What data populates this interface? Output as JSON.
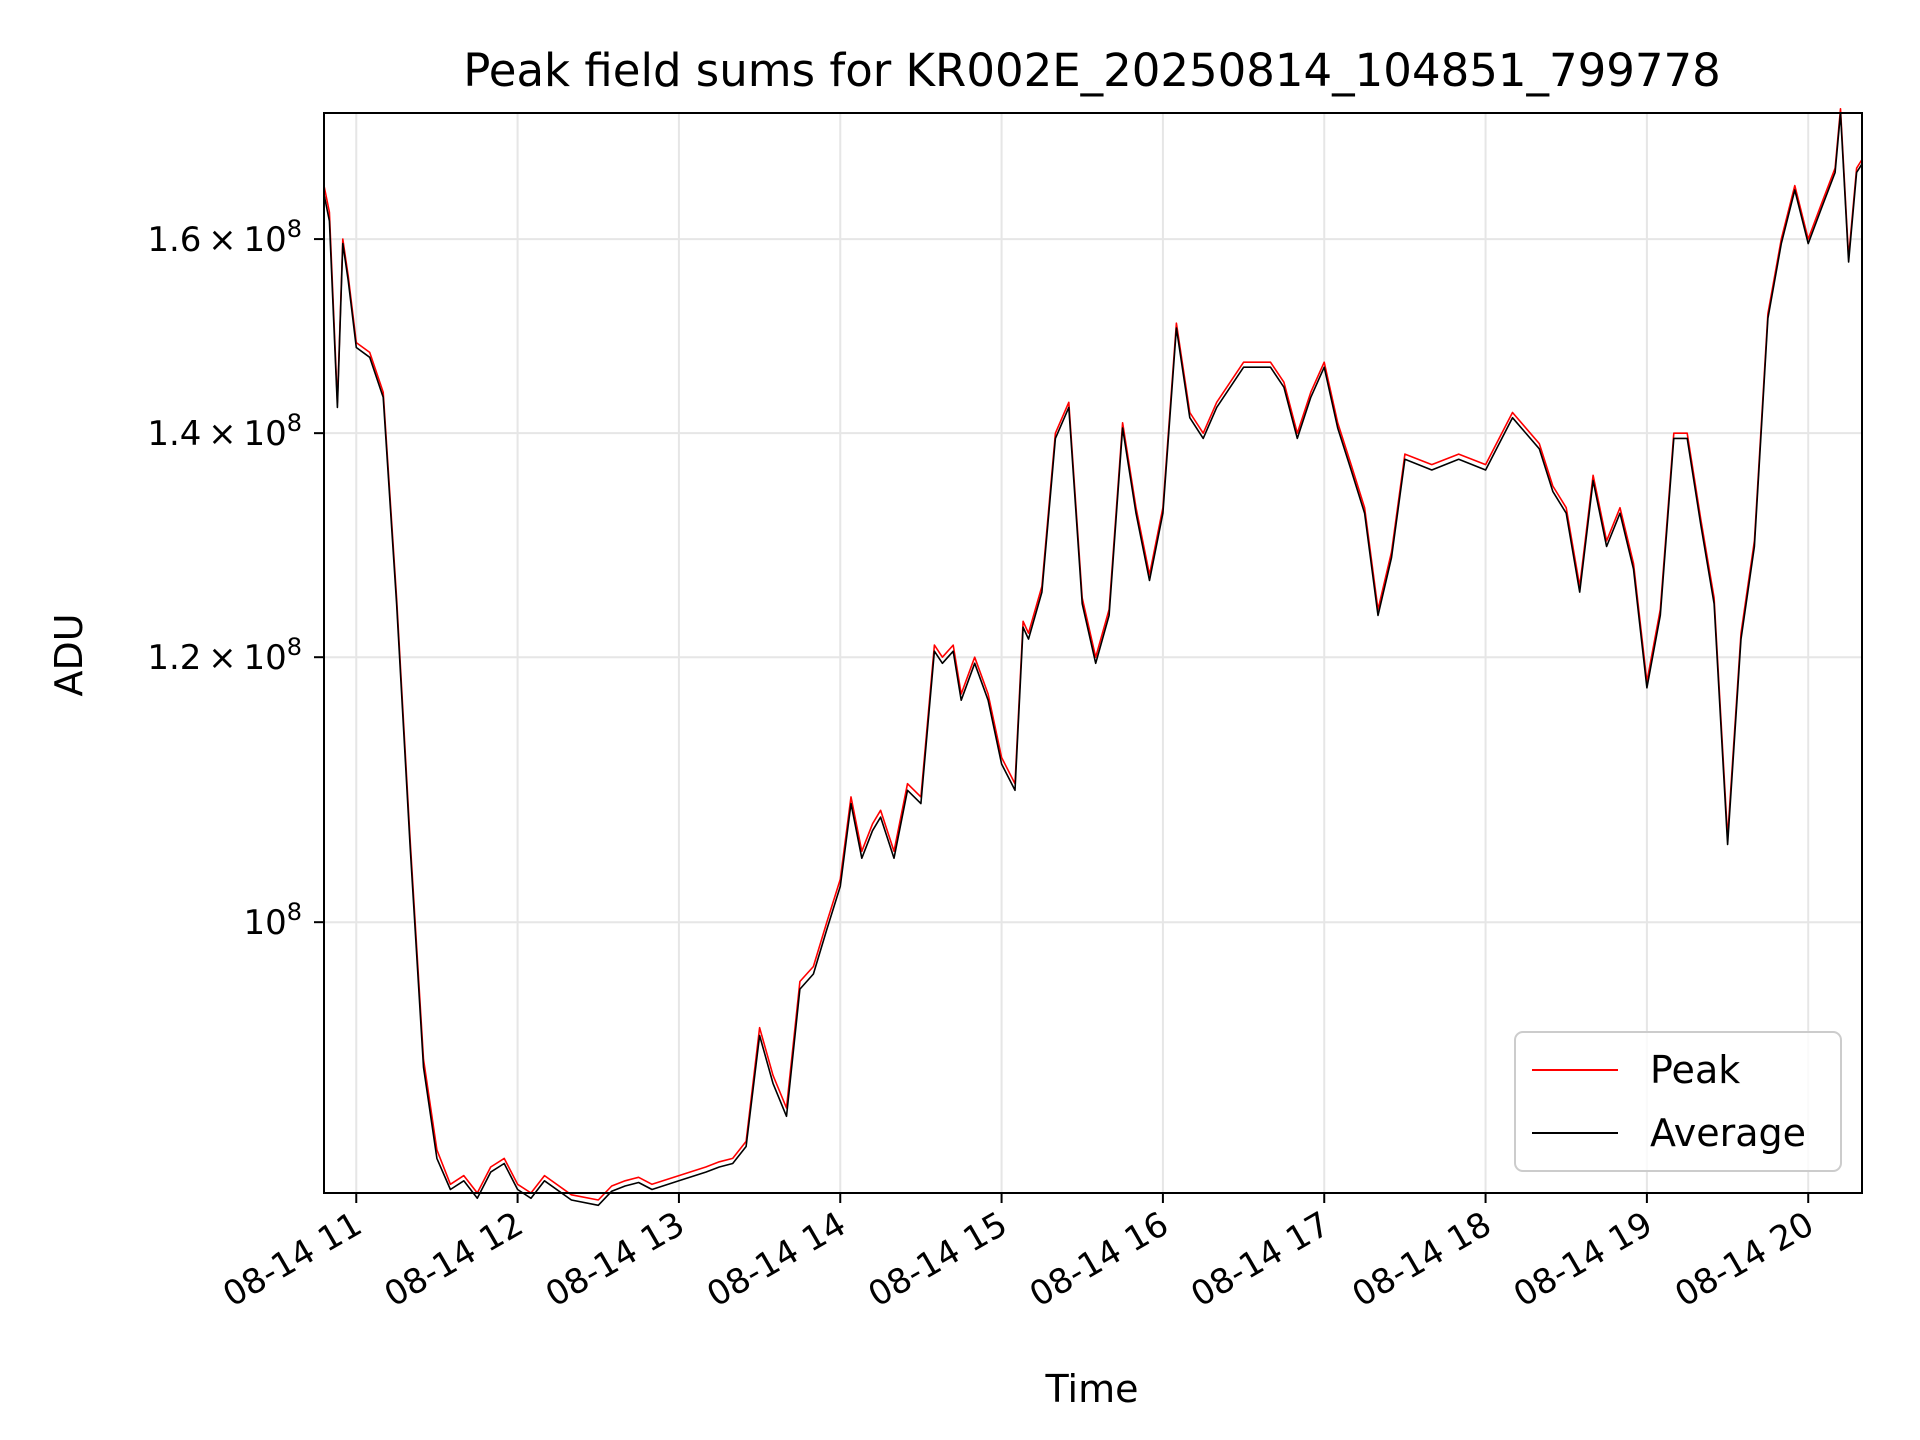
{
  "chart_data": {
    "type": "line",
    "title": "Peak field sums for KR002E_20250814_104851_799778",
    "xlabel": "Time",
    "ylabel": "ADU",
    "x_tick_labels": [
      "08-14 11",
      "08-14 12",
      "08-14 13",
      "08-14 14",
      "08-14 15",
      "08-14 16",
      "08-14 17",
      "08-14 18",
      "08-14 19",
      "08-14 20"
    ],
    "y_scale": "log",
    "y_ticks": [
      {
        "value": 100000000,
        "mantissa": "",
        "exponent": "8"
      },
      {
        "value": 120000000,
        "mantissa": "1.2",
        "exponent": "8"
      },
      {
        "value": 140000000,
        "mantissa": "1.4",
        "exponent": "8"
      },
      {
        "value": 160000000,
        "mantissa": "1.6",
        "exponent": "8"
      }
    ],
    "xlim": [
      "08-14 10:48",
      "08-14 20:20"
    ],
    "ylim": [
      83000000,
      174500000
    ],
    "grid": true,
    "legend_position": "lower right",
    "series": [
      {
        "name": "Peak",
        "color": "#ff0000",
        "linewidth_style": "thin",
        "role": "peak"
      },
      {
        "name": "Average",
        "color": "#000000",
        "linewidth_style": "thin",
        "role": "average"
      }
    ],
    "x": [
      "08-14 10:48",
      "08-14 10:50",
      "08-14 10:53",
      "08-14 10:55",
      "08-14 10:57",
      "08-14 11:00",
      "08-14 11:05",
      "08-14 11:10",
      "08-14 11:15",
      "08-14 11:20",
      "08-14 11:25",
      "08-14 11:30",
      "08-14 11:35",
      "08-14 11:40",
      "08-14 11:45",
      "08-14 11:50",
      "08-14 11:55",
      "08-14 12:00",
      "08-14 12:05",
      "08-14 12:10",
      "08-14 12:20",
      "08-14 12:30",
      "08-14 12:35",
      "08-14 12:40",
      "08-14 12:45",
      "08-14 12:50",
      "08-14 13:00",
      "08-14 13:10",
      "08-14 13:15",
      "08-14 13:20",
      "08-14 13:25",
      "08-14 13:30",
      "08-14 13:35",
      "08-14 13:40",
      "08-14 13:45",
      "08-14 13:50",
      "08-14 13:55",
      "08-14 14:00",
      "08-14 14:04",
      "08-14 14:08",
      "08-14 14:12",
      "08-14 14:15",
      "08-14 14:20",
      "08-14 14:25",
      "08-14 14:30",
      "08-14 14:35",
      "08-14 14:38",
      "08-14 14:42",
      "08-14 14:45",
      "08-14 14:50",
      "08-14 14:55",
      "08-14 15:00",
      "08-14 15:05",
      "08-14 15:08",
      "08-14 15:10",
      "08-14 15:15",
      "08-14 15:20",
      "08-14 15:25",
      "08-14 15:30",
      "08-14 15:35",
      "08-14 15:40",
      "08-14 15:45",
      "08-14 15:50",
      "08-14 15:55",
      "08-14 16:00",
      "08-14 16:05",
      "08-14 16:10",
      "08-14 16:15",
      "08-14 16:20",
      "08-14 16:30",
      "08-14 16:40",
      "08-14 16:45",
      "08-14 16:50",
      "08-14 16:55",
      "08-14 17:00",
      "08-14 17:05",
      "08-14 17:10",
      "08-14 17:15",
      "08-14 17:20",
      "08-14 17:25",
      "08-14 17:30",
      "08-14 17:40",
      "08-14 17:50",
      "08-14 18:00",
      "08-14 18:10",
      "08-14 18:20",
      "08-14 18:25",
      "08-14 18:30",
      "08-14 18:35",
      "08-14 18:40",
      "08-14 18:45",
      "08-14 18:50",
      "08-14 18:55",
      "08-14 19:00",
      "08-14 19:05",
      "08-14 19:10",
      "08-14 19:15",
      "08-14 19:20",
      "08-14 19:25",
      "08-14 19:30",
      "08-14 19:35",
      "08-14 19:40",
      "08-14 19:45",
      "08-14 19:50",
      "08-14 19:55",
      "08-14 20:00",
      "08-14 20:05",
      "08-14 20:10",
      "08-14 20:12",
      "08-14 20:15",
      "08-14 20:18",
      "08-14 20:20"
    ],
    "peak_values": [
      166000000.0,
      163000000.0,
      143000000.0,
      160000000.0,
      156000000.0,
      149000000.0,
      148000000.0,
      144000000.0,
      125000000.0,
      106000000.0,
      91000000.0,
      85500000.0,
      83500000.0,
      84000000.0,
      83000000.0,
      84500000.0,
      85000000.0,
      83500000.0,
      83000000.0,
      84000000.0,
      82900000.0,
      82600000.0,
      83400000.0,
      83700000.0,
      83900000.0,
      83500000.0,
      84000000.0,
      84500000.0,
      84800000.0,
      85000000.0,
      86000000.0,
      93000000.0,
      90000000.0,
      88000000.0,
      96000000.0,
      97000000.0,
      100000000.0,
      103000000.0,
      109000000.0,
      105000000.0,
      107000000.0,
      108000000.0,
      105000000.0,
      110000000.0,
      109000000.0,
      121000000.0,
      120000000.0,
      121000000.0,
      117000000.0,
      120000000.0,
      117000000.0,
      112000000.0,
      110000000.0,
      123000000.0,
      122000000.0,
      126000000.0,
      140000000.0,
      143000000.0,
      125000000.0,
      120000000.0,
      124000000.0,
      141000000.0,
      133000000.0,
      127000000.0,
      133000000.0,
      151000000.0,
      142000000.0,
      140000000.0,
      143000000.0,
      147000000.0,
      147000000.0,
      145000000.0,
      140000000.0,
      144000000.0,
      147000000.0,
      141000000.0,
      137000000.0,
      133000000.0,
      124000000.0,
      129000000.0,
      138000000.0,
      137000000.0,
      138000000.0,
      137000000.0,
      142000000.0,
      139000000.0,
      135000000.0,
      133000000.0,
      126000000.0,
      136000000.0,
      130000000.0,
      133000000.0,
      128000000.0,
      118000000.0,
      124000000.0,
      140000000.0,
      140000000.0,
      132000000.0,
      125000000.0,
      106000000.0,
      122000000.0,
      130000000.0,
      152000000.0,
      160000000.0,
      166000000.0,
      160000000.0,
      164000000.0,
      168000000.0,
      175000000.0,
      158000000.0,
      168000000.0,
      169000000.0
    ],
    "avg_values": [
      165000000.0,
      162000000.0,
      142500000.0,
      159500000.0,
      155500000.0,
      148500000.0,
      147500000.0,
      143500000.0,
      124500000.0,
      105500000.0,
      90500000.0,
      85000000.0,
      83200000.0,
      83700000.0,
      82700000.0,
      84200000.0,
      84700000.0,
      83200000.0,
      82700000.0,
      83700000.0,
      82600000.0,
      82300000.0,
      83100000.0,
      83400000.0,
      83600000.0,
      83200000.0,
      83700000.0,
      84200000.0,
      84500000.0,
      84700000.0,
      85700000.0,
      92500000.0,
      89500000.0,
      87500000.0,
      95500000.0,
      96500000.0,
      99500000.0,
      102500000.0,
      108500000.0,
      104500000.0,
      106500000.0,
      107500000.0,
      104500000.0,
      109500000.0,
      108500000.0,
      120500000.0,
      119500000.0,
      120500000.0,
      116500000.0,
      119500000.0,
      116500000.0,
      111500000.0,
      109500000.0,
      122500000.0,
      121500000.0,
      125500000.0,
      139500000.0,
      142500000.0,
      124500000.0,
      119500000.0,
      123500000.0,
      140500000.0,
      132500000.0,
      126500000.0,
      132500000.0,
      150500000.0,
      141500000.0,
      139500000.0,
      142500000.0,
      146500000.0,
      146500000.0,
      144500000.0,
      139500000.0,
      143500000.0,
      146500000.0,
      140500000.0,
      136500000.0,
      132500000.0,
      123500000.0,
      128500000.0,
      137500000.0,
      136500000.0,
      137500000.0,
      136500000.0,
      141500000.0,
      138500000.0,
      134500000.0,
      132500000.0,
      125500000.0,
      135500000.0,
      129500000.0,
      132500000.0,
      127500000.0,
      117500000.0,
      123500000.0,
      139500000.0,
      139500000.0,
      131500000.0,
      124500000.0,
      105500000.0,
      121500000.0,
      129500000.0,
      151500000.0,
      159500000.0,
      165500000.0,
      159500000.0,
      163500000.0,
      167500000.0,
      174500000.0,
      157500000.0,
      167500000.0,
      168500000.0
    ]
  }
}
